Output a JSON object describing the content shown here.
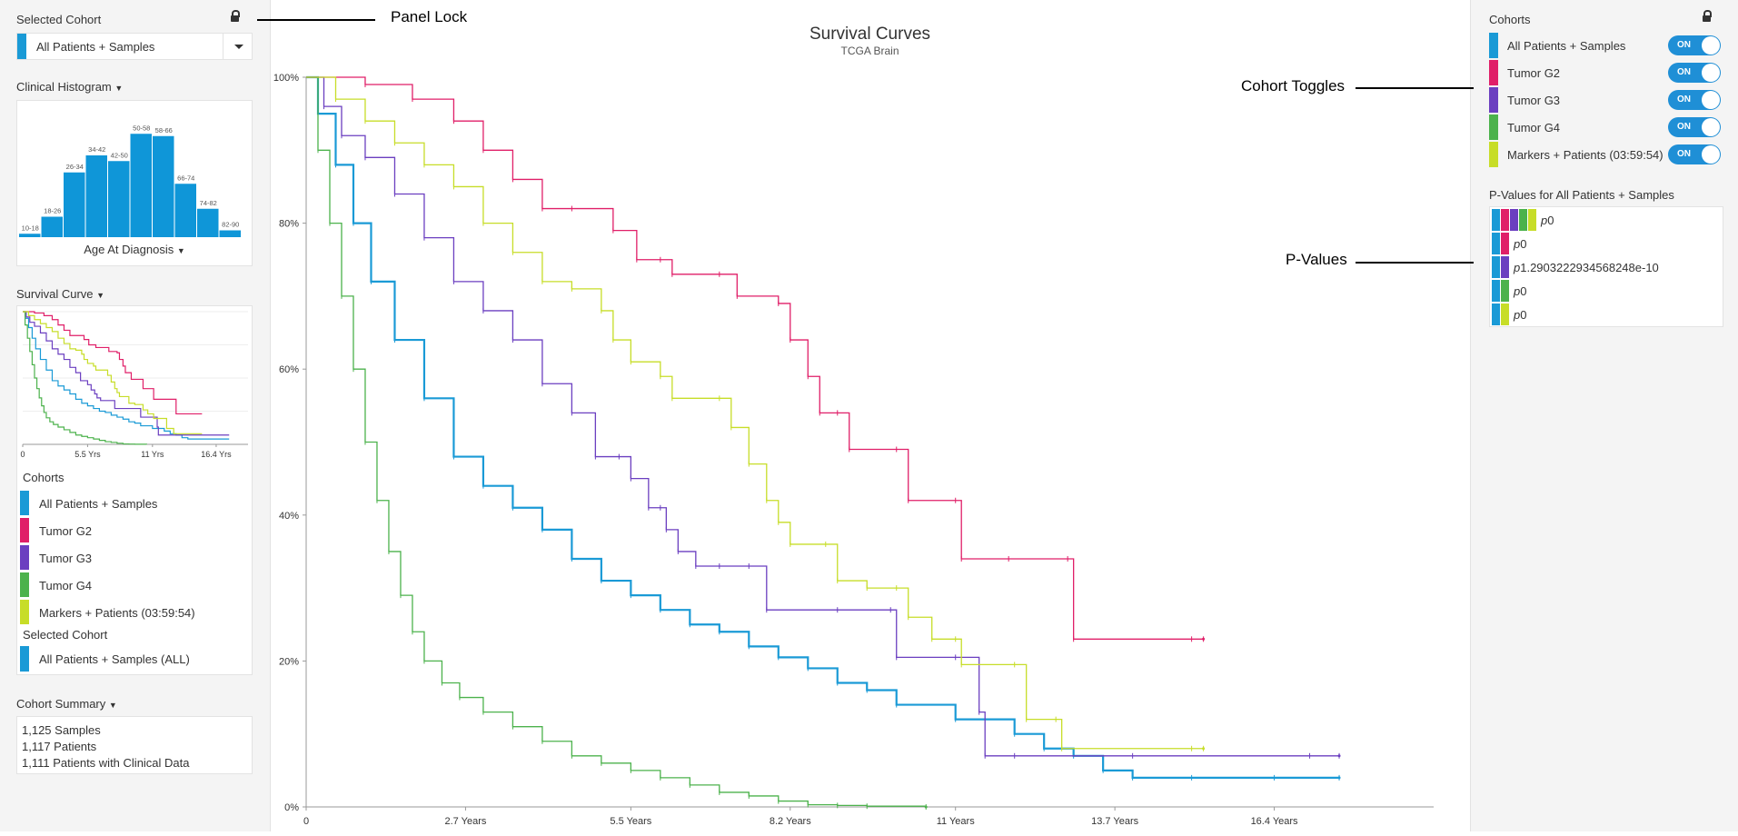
{
  "colors": {
    "all": "#1a9ad6",
    "g2": "#e01f68",
    "g3": "#6b3fc0",
    "g4": "#4cb24c",
    "markers": "#c7dd28"
  },
  "left": {
    "selected_cohort_title": "Selected Cohort",
    "selected_cohort_value": "All Patients + Samples",
    "histogram_title": "Clinical Histogram",
    "histogram_axis": "Age At Diagnosis",
    "histogram": {
      "bins": [
        "10-18",
        "18-26",
        "26-34",
        "34-42",
        "42-50",
        "50-58",
        "58-66",
        "66-74",
        "74-82",
        "82-90"
      ],
      "values": [
        3,
        18,
        57,
        72,
        67,
        91,
        89,
        47,
        25,
        6
      ],
      "max": 100
    },
    "survival_title": "Survival Curve",
    "mini_ticks": [
      "0",
      "5.5 Yrs",
      "11 Yrs",
      "16.4 Yrs"
    ],
    "cohorts_title": "Cohorts",
    "cohorts": [
      {
        "label": "All Patients + Samples",
        "color": "#1a9ad6"
      },
      {
        "label": "Tumor G2",
        "color": "#e01f68"
      },
      {
        "label": "Tumor G3",
        "color": "#6b3fc0"
      },
      {
        "label": "Tumor G4",
        "color": "#4cb24c"
      },
      {
        "label": "Markers + Patients (03:59:54)",
        "color": "#c7dd28"
      }
    ],
    "selected_cohort_sub_title": "Selected Cohort",
    "selected_cohort_sub_value": "All Patients + Samples (ALL)",
    "summary_title": "Cohort Summary",
    "summary_lines": [
      "1,125 Samples",
      "1,117 Patients",
      "1,111 Patients with Clinical Data"
    ]
  },
  "right": {
    "cohorts_title": "Cohorts",
    "toggle_label": "ON",
    "cohorts": [
      {
        "label": "All Patients + Samples",
        "color": "#1a9ad6"
      },
      {
        "label": "Tumor G2",
        "color": "#e01f68"
      },
      {
        "label": "Tumor G3",
        "color": "#6b3fc0"
      },
      {
        "label": "Tumor G4",
        "color": "#4cb24c"
      },
      {
        "label": "Markers + Patients (03:59:54)",
        "color": "#c7dd28"
      }
    ],
    "pvalues_title": "P-Values for All Patients + Samples",
    "pvalues": [
      {
        "p": "p",
        "value": "0"
      },
      {
        "p": "p",
        "value": "0"
      },
      {
        "p": "p",
        "value": "1.2903222934568248e-10"
      },
      {
        "p": "p",
        "value": "0"
      },
      {
        "p": "p",
        "value": "0"
      }
    ]
  },
  "annotations": {
    "panel_lock": "Panel Lock",
    "cohort_toggles": "Cohort Toggles",
    "p_values": "P-Values"
  },
  "chart_data": {
    "type": "line",
    "title": "Survival Curves",
    "subtitle": "TCGA Brain",
    "xlim": [
      0,
      19.1
    ],
    "ylim": [
      0,
      100
    ],
    "x_ticks": [
      0,
      2.7,
      5.5,
      8.2,
      11,
      13.7,
      16.4
    ],
    "x_tick_labels": [
      "0",
      "2.7 Years",
      "5.5 Years",
      "8.2 Years",
      "11 Years",
      "13.7 Years",
      "16.4 Years"
    ],
    "y_ticks": [
      0,
      20,
      40,
      60,
      80,
      100
    ],
    "y_tick_labels": [
      "0%",
      "20%",
      "40%",
      "60%",
      "80%",
      "100%"
    ],
    "series": [
      {
        "name": "All Patients + Samples",
        "color": "#1a9ad6",
        "points": [
          [
            0,
            100
          ],
          [
            0.2,
            95
          ],
          [
            0.5,
            88
          ],
          [
            0.8,
            80
          ],
          [
            1.1,
            72
          ],
          [
            1.5,
            64
          ],
          [
            2,
            56
          ],
          [
            2.5,
            48
          ],
          [
            3,
            44
          ],
          [
            3.5,
            41
          ],
          [
            4,
            38
          ],
          [
            4.5,
            34
          ],
          [
            5,
            31
          ],
          [
            5.5,
            29
          ],
          [
            6,
            27
          ],
          [
            6.5,
            25
          ],
          [
            7,
            24
          ],
          [
            7.5,
            22
          ],
          [
            8,
            20.5
          ],
          [
            8.5,
            19
          ],
          [
            9,
            17
          ],
          [
            9.5,
            16
          ],
          [
            10,
            14
          ],
          [
            11,
            12
          ],
          [
            12,
            10
          ],
          [
            12.5,
            8
          ],
          [
            13,
            7
          ],
          [
            13.5,
            5
          ],
          [
            14,
            4
          ],
          [
            15,
            4
          ],
          [
            16.4,
            4
          ],
          [
            17.5,
            4
          ]
        ]
      },
      {
        "name": "Tumor G2",
        "color": "#e01f68",
        "points": [
          [
            0,
            100
          ],
          [
            1,
            99
          ],
          [
            1.8,
            97
          ],
          [
            2.5,
            94
          ],
          [
            3,
            90
          ],
          [
            3.5,
            86
          ],
          [
            4,
            82
          ],
          [
            4.5,
            82
          ],
          [
            5.2,
            79
          ],
          [
            5.6,
            75
          ],
          [
            6,
            75
          ],
          [
            6.2,
            73
          ],
          [
            7,
            73
          ],
          [
            7.3,
            70
          ],
          [
            8,
            69
          ],
          [
            8.2,
            64
          ],
          [
            8.5,
            59
          ],
          [
            8.7,
            54
          ],
          [
            9,
            54
          ],
          [
            9.2,
            49
          ],
          [
            10,
            49
          ],
          [
            10.2,
            42
          ],
          [
            11,
            42
          ],
          [
            11.1,
            34
          ],
          [
            11.9,
            34
          ],
          [
            12.9,
            34
          ],
          [
            13,
            23
          ],
          [
            15,
            23
          ],
          [
            15.2,
            23
          ]
        ]
      },
      {
        "name": "Tumor G3",
        "color": "#6b3fc0",
        "points": [
          [
            0,
            100
          ],
          [
            0.3,
            96
          ],
          [
            0.6,
            92
          ],
          [
            1,
            89
          ],
          [
            1.5,
            84
          ],
          [
            2,
            78
          ],
          [
            2.5,
            72
          ],
          [
            3,
            68
          ],
          [
            3.5,
            64
          ],
          [
            4,
            58
          ],
          [
            4.5,
            54
          ],
          [
            4.9,
            48
          ],
          [
            5.3,
            48
          ],
          [
            5.5,
            45
          ],
          [
            5.8,
            41
          ],
          [
            6,
            41
          ],
          [
            6.1,
            38
          ],
          [
            6.3,
            35
          ],
          [
            6.6,
            33
          ],
          [
            7,
            33
          ],
          [
            7.5,
            33
          ],
          [
            7.8,
            27
          ],
          [
            9,
            27
          ],
          [
            9.9,
            27
          ],
          [
            10,
            20.5
          ],
          [
            11,
            20.5
          ],
          [
            11.4,
            13
          ],
          [
            11.5,
            7
          ],
          [
            12,
            7
          ],
          [
            14,
            7
          ],
          [
            17,
            7
          ],
          [
            17.5,
            7
          ]
        ]
      },
      {
        "name": "Tumor G4",
        "color": "#4cb24c",
        "points": [
          [
            0,
            100
          ],
          [
            0.2,
            90
          ],
          [
            0.4,
            80
          ],
          [
            0.6,
            70
          ],
          [
            0.8,
            60
          ],
          [
            1,
            50
          ],
          [
            1.2,
            42
          ],
          [
            1.4,
            35
          ],
          [
            1.6,
            29
          ],
          [
            1.8,
            24
          ],
          [
            2,
            20
          ],
          [
            2.3,
            17
          ],
          [
            2.6,
            15
          ],
          [
            3,
            13
          ],
          [
            3.5,
            11
          ],
          [
            4,
            9
          ],
          [
            4.5,
            7
          ],
          [
            5,
            6
          ],
          [
            5.5,
            5
          ],
          [
            6,
            4
          ],
          [
            6.5,
            3
          ],
          [
            7,
            2
          ],
          [
            7.5,
            1.5
          ],
          [
            8,
            0.8
          ],
          [
            8.5,
            0.3
          ],
          [
            9,
            0.2
          ],
          [
            9.5,
            0.1
          ],
          [
            10.5,
            0
          ]
        ]
      },
      {
        "name": "Markers + Patients (03:59:54)",
        "color": "#c7dd28",
        "points": [
          [
            0,
            100
          ],
          [
            0.5,
            97
          ],
          [
            1,
            94
          ],
          [
            1.5,
            91
          ],
          [
            2,
            88
          ],
          [
            2.5,
            85
          ],
          [
            3,
            80
          ],
          [
            3.5,
            76
          ],
          [
            4,
            72
          ],
          [
            4.5,
            71
          ],
          [
            5,
            68
          ],
          [
            5.2,
            64
          ],
          [
            5.5,
            61
          ],
          [
            6,
            59
          ],
          [
            6.2,
            56
          ],
          [
            7,
            56
          ],
          [
            7.2,
            52
          ],
          [
            7.5,
            47
          ],
          [
            7.8,
            42
          ],
          [
            8,
            39
          ],
          [
            8.2,
            36
          ],
          [
            8.8,
            36
          ],
          [
            9,
            31
          ],
          [
            9.5,
            30
          ],
          [
            10,
            30
          ],
          [
            10.2,
            26
          ],
          [
            10.6,
            23
          ],
          [
            11,
            23
          ],
          [
            11.1,
            19.5
          ],
          [
            12,
            19.5
          ],
          [
            12.2,
            12
          ],
          [
            12.7,
            12
          ],
          [
            12.8,
            8
          ],
          [
            15,
            8
          ],
          [
            15.2,
            8
          ]
        ]
      }
    ]
  }
}
